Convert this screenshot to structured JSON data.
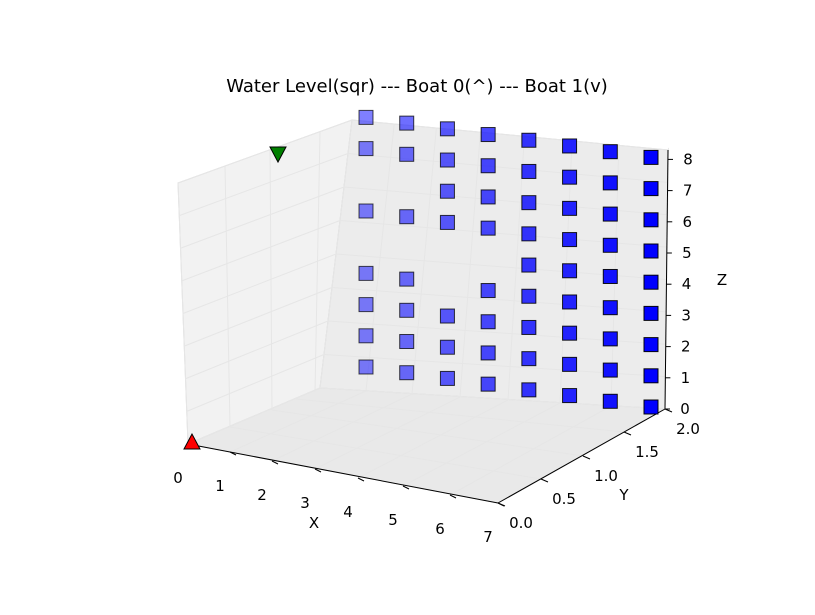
{
  "chart_data": {
    "type": "scatter3d",
    "title": "Water Level(sqr) --- Boat 0(^) --- Boat 1(v)",
    "xlabel": "X",
    "ylabel": "Y",
    "zlabel": "Z",
    "xlim": [
      0,
      7
    ],
    "ylim": [
      0,
      2
    ],
    "zlim": [
      0,
      8
    ],
    "x_ticks": [
      "0",
      "1",
      "2",
      "3",
      "4",
      "5",
      "6",
      "7"
    ],
    "y_ticks": [
      "0.0",
      "0.5",
      "1.0",
      "1.5",
      "2.0"
    ],
    "z_ticks": [
      "0",
      "1",
      "2",
      "3",
      "4",
      "5",
      "6",
      "7",
      "8"
    ],
    "grid": true,
    "colors": {
      "water": "#0000ff",
      "boat0": "#ff0000",
      "boat1": "#008000",
      "pane_fill": "#f2f2f2",
      "grid": "#e6e6e6"
    },
    "series": [
      {
        "name": "Water Level",
        "marker": "square",
        "points": [
          {
            "x": 0,
            "y": 2,
            "z": 0
          },
          {
            "x": 0,
            "y": 2,
            "z": 1
          },
          {
            "x": 0,
            "y": 2,
            "z": 2
          },
          {
            "x": 0,
            "y": 2,
            "z": 3
          },
          {
            "x": 0,
            "y": 2,
            "z": 5
          },
          {
            "x": 0,
            "y": 2,
            "z": 7
          },
          {
            "x": 0,
            "y": 2,
            "z": 8
          },
          {
            "x": 1,
            "y": 2,
            "z": 0
          },
          {
            "x": 1,
            "y": 2,
            "z": 1
          },
          {
            "x": 1,
            "y": 2,
            "z": 2
          },
          {
            "x": 1,
            "y": 2,
            "z": 3
          },
          {
            "x": 1,
            "y": 2,
            "z": 5
          },
          {
            "x": 1,
            "y": 2,
            "z": 7
          },
          {
            "x": 1,
            "y": 2,
            "z": 8
          },
          {
            "x": 2,
            "y": 2,
            "z": 0
          },
          {
            "x": 2,
            "y": 2,
            "z": 1
          },
          {
            "x": 2,
            "y": 2,
            "z": 2
          },
          {
            "x": 2,
            "y": 2,
            "z": 5
          },
          {
            "x": 2,
            "y": 2,
            "z": 6
          },
          {
            "x": 2,
            "y": 2,
            "z": 7
          },
          {
            "x": 2,
            "y": 2,
            "z": 8
          },
          {
            "x": 3,
            "y": 2,
            "z": 0
          },
          {
            "x": 3,
            "y": 2,
            "z": 1
          },
          {
            "x": 3,
            "y": 2,
            "z": 2
          },
          {
            "x": 3,
            "y": 2,
            "z": 3
          },
          {
            "x": 3,
            "y": 2,
            "z": 5
          },
          {
            "x": 3,
            "y": 2,
            "z": 6
          },
          {
            "x": 3,
            "y": 2,
            "z": 7
          },
          {
            "x": 3,
            "y": 2,
            "z": 8
          },
          {
            "x": 4,
            "y": 2,
            "z": 0
          },
          {
            "x": 4,
            "y": 2,
            "z": 1
          },
          {
            "x": 4,
            "y": 2,
            "z": 2
          },
          {
            "x": 4,
            "y": 2,
            "z": 3
          },
          {
            "x": 4,
            "y": 2,
            "z": 4
          },
          {
            "x": 4,
            "y": 2,
            "z": 5
          },
          {
            "x": 4,
            "y": 2,
            "z": 6
          },
          {
            "x": 4,
            "y": 2,
            "z": 7
          },
          {
            "x": 4,
            "y": 2,
            "z": 8
          },
          {
            "x": 5,
            "y": 2,
            "z": 0
          },
          {
            "x": 5,
            "y": 2,
            "z": 1
          },
          {
            "x": 5,
            "y": 2,
            "z": 2
          },
          {
            "x": 5,
            "y": 2,
            "z": 3
          },
          {
            "x": 5,
            "y": 2,
            "z": 4
          },
          {
            "x": 5,
            "y": 2,
            "z": 5
          },
          {
            "x": 5,
            "y": 2,
            "z": 6
          },
          {
            "x": 5,
            "y": 2,
            "z": 7
          },
          {
            "x": 5,
            "y": 2,
            "z": 8
          },
          {
            "x": 6,
            "y": 2,
            "z": 0
          },
          {
            "x": 6,
            "y": 2,
            "z": 1
          },
          {
            "x": 6,
            "y": 2,
            "z": 2
          },
          {
            "x": 6,
            "y": 2,
            "z": 3
          },
          {
            "x": 6,
            "y": 2,
            "z": 4
          },
          {
            "x": 6,
            "y": 2,
            "z": 5
          },
          {
            "x": 6,
            "y": 2,
            "z": 6
          },
          {
            "x": 6,
            "y": 2,
            "z": 7
          },
          {
            "x": 6,
            "y": 2,
            "z": 8
          },
          {
            "x": 7,
            "y": 2,
            "z": 0
          },
          {
            "x": 7,
            "y": 2,
            "z": 1
          },
          {
            "x": 7,
            "y": 2,
            "z": 2
          },
          {
            "x": 7,
            "y": 2,
            "z": 3
          },
          {
            "x": 7,
            "y": 2,
            "z": 4
          },
          {
            "x": 7,
            "y": 2,
            "z": 5
          },
          {
            "x": 7,
            "y": 2,
            "z": 6
          },
          {
            "x": 7,
            "y": 2,
            "z": 7
          },
          {
            "x": 7,
            "y": 2,
            "z": 8
          }
        ]
      },
      {
        "name": "Boat 0",
        "marker": "triangle-up",
        "points": [
          {
            "x": 0,
            "y": 0,
            "z": 0
          }
        ]
      },
      {
        "name": "Boat 1",
        "marker": "triangle-down",
        "points": [
          {
            "x": 0,
            "y": 0,
            "z": 8
          }
        ]
      }
    ]
  }
}
